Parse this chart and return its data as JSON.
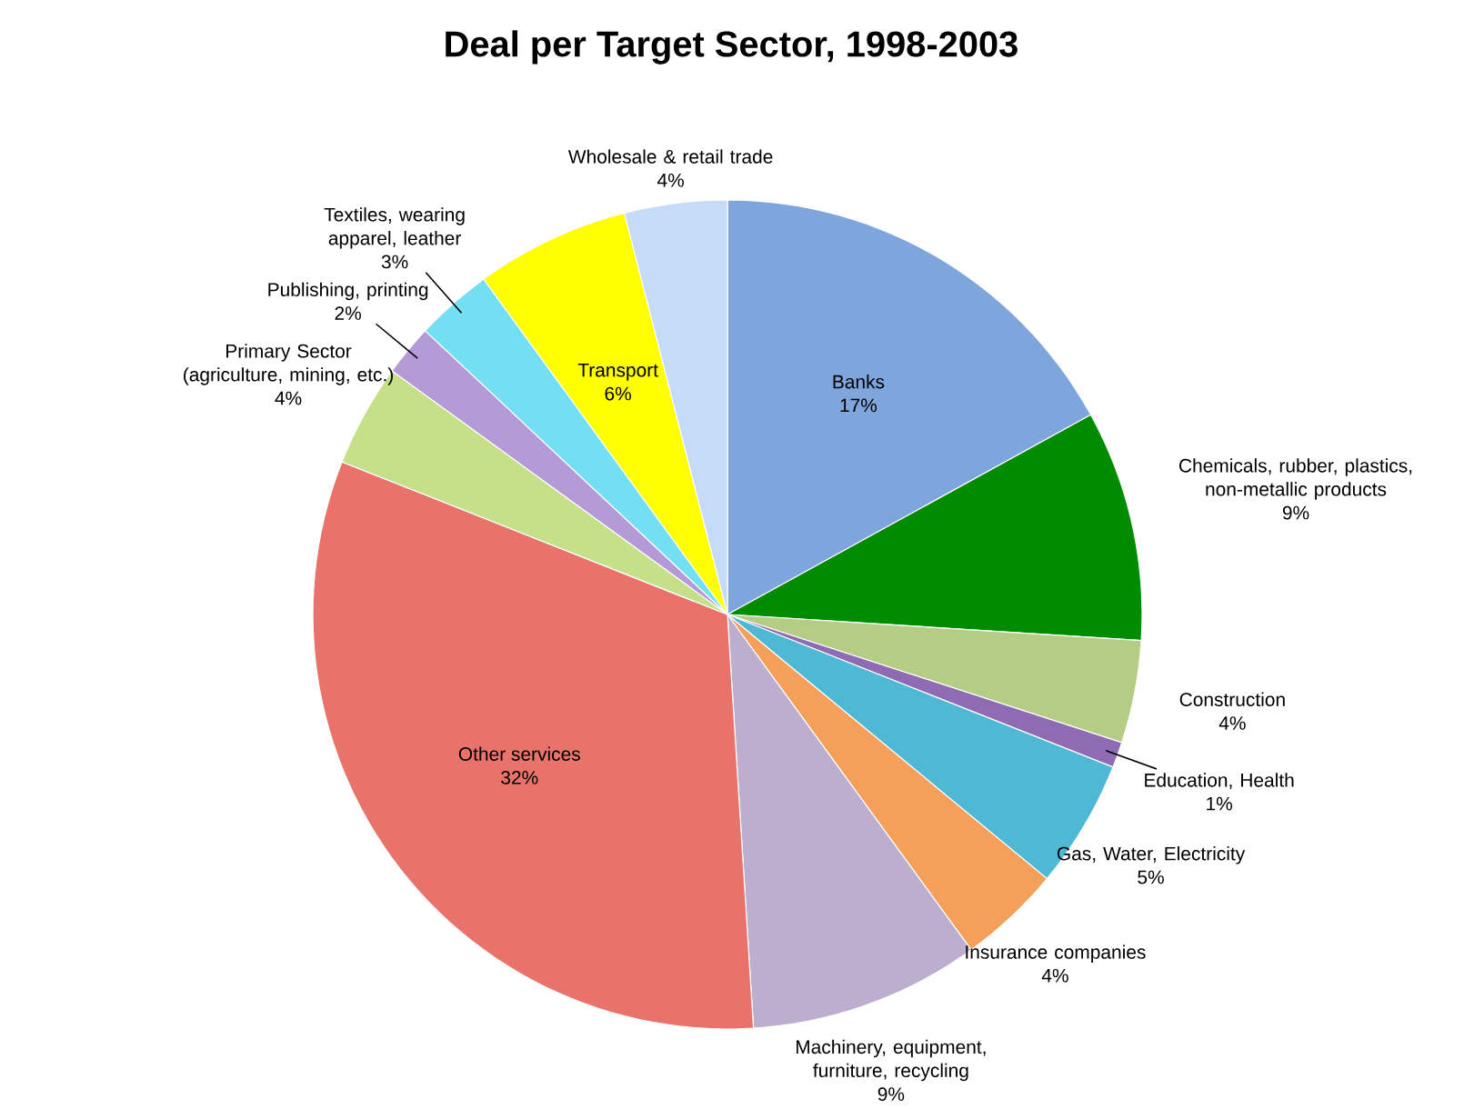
{
  "chart_data": {
    "type": "pie",
    "title": "Deal per Target Sector, 1998-2003",
    "categories": [
      "Banks",
      "Chemicals, rubber, plastics, non-metallic products",
      "Construction",
      "Education, Health",
      "Gas, Water, Electricity",
      "Insurance companies",
      "Machinery, equipment, furniture, recycling",
      "Other services",
      "Primary Sector (agriculture, mining, etc.)",
      "Publishing, printing",
      "Textiles, wearing apparel, leather",
      "Transport",
      "Wholesale & retail trade"
    ],
    "values": [
      17,
      9,
      4,
      1,
      5,
      4,
      9,
      32,
      4,
      2,
      3,
      6,
      4
    ],
    "value_labels": [
      "17%",
      "9%",
      "4%",
      "1%",
      "5%",
      "4%",
      "9%",
      "32%",
      "4%",
      "2%",
      "3%",
      "6%",
      "4%"
    ],
    "colors": [
      "#7fa6dc",
      "#008c00",
      "#b5cc85",
      "#8e6bb3",
      "#4fb8d4",
      "#f5a05a",
      "#bcaecf",
      "#e9736a",
      "#c6e08a",
      "#b49ad6",
      "#73dff2",
      "#ffff00",
      "#c6dbf7"
    ]
  }
}
